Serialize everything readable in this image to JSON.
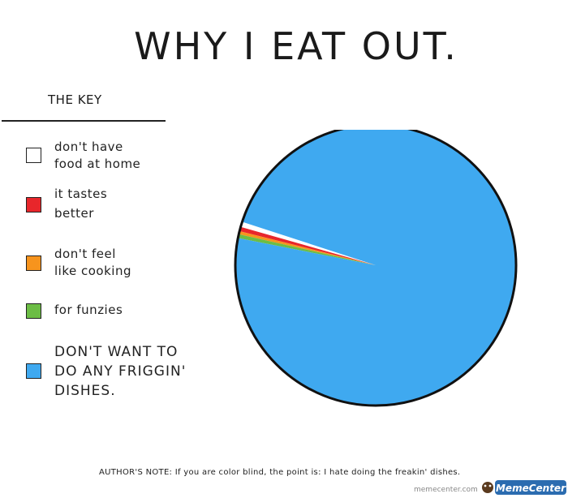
{
  "title": "WHY I EAT OUT.",
  "key_title": "THE KEY",
  "author_note": "AUTHOR'S NOTE: If you are color blind, the point is: I hate doing the freakin' dishes.",
  "watermark": {
    "url": "memecenter.com",
    "logo_text": "MemeCenter"
  },
  "legend": [
    {
      "line1": "don't have",
      "line2": "food at home",
      "line3": "",
      "color": "#ffffff"
    },
    {
      "line1": "it tastes",
      "line2": "better",
      "line3": "",
      "color": "#e8262b"
    },
    {
      "line1": "don't feel",
      "line2": "like cooking",
      "line3": "",
      "color": "#f7941d"
    },
    {
      "line1": "for funzies",
      "line2": "",
      "line3": "",
      "color": "#6cbd45"
    },
    {
      "line1": "DON'T WANT TO",
      "line2": "DO ANY FRIGGIN'",
      "line3": "DISHES.",
      "color": "#3fa9f0"
    }
  ],
  "chart_data": {
    "type": "pie",
    "title": "WHY I EAT OUT.",
    "legend_position": "left",
    "slices": [
      {
        "label": "don't have food at home",
        "value": 0.6,
        "color": "#ffffff"
      },
      {
        "label": "it tastes better",
        "value": 0.5,
        "color": "#e8262b"
      },
      {
        "label": "don't feel like cooking",
        "value": 0.35,
        "color": "#f7941d"
      },
      {
        "label": "for funzies",
        "value": 0.45,
        "color": "#6cbd45"
      },
      {
        "label": "DON'T WANT TO DO ANY FRIGGIN' DISHES.",
        "value": 98.1,
        "color": "#3fa9f0"
      }
    ]
  }
}
